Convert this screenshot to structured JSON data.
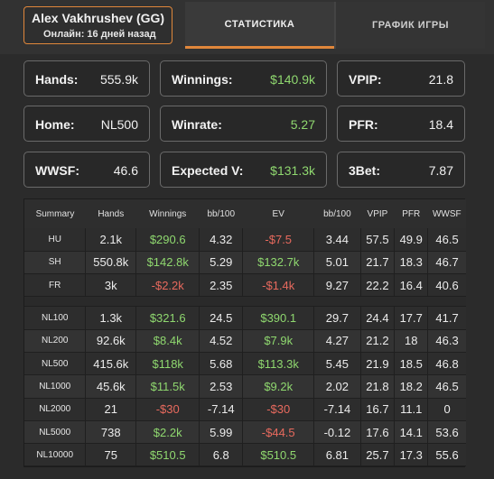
{
  "player": {
    "name": "Alex Vakhrushev (GG)",
    "status": "Онлайн: 16 дней назад"
  },
  "tabs": [
    {
      "label": "СТАТИСТИКА",
      "active": true
    },
    {
      "label": "ГРАФИК ИГРЫ",
      "active": false
    }
  ],
  "stats": {
    "hands": {
      "label": "Hands:",
      "value": "555.9k"
    },
    "winnings": {
      "label": "Winnings:",
      "value": "$140.9k"
    },
    "vpip": {
      "label": "VPIP:",
      "value": "21.8"
    },
    "home": {
      "label": "Home:",
      "value": "NL500"
    },
    "winrate": {
      "label": "Winrate:",
      "value": "5.27"
    },
    "pfr": {
      "label": "PFR:",
      "value": "18.4"
    },
    "wwsf": {
      "label": "WWSF:",
      "value": "46.6"
    },
    "expected": {
      "label": "Expected V:",
      "value": "$131.3k"
    },
    "threebet": {
      "label": "3Bet:",
      "value": "7.87"
    }
  },
  "colors": {
    "accent": "#e0873b",
    "positive": "#8fd86f",
    "negative": "#e86a5e"
  },
  "table": {
    "headers": [
      "Summary",
      "Hands",
      "Winnings",
      "bb/100",
      "EV",
      "bb/100",
      "VPIP",
      "PFR",
      "WWSF"
    ],
    "group1": [
      [
        "HU",
        "2.1k",
        "$290.6",
        "4.32",
        "-$7.5",
        "3.44",
        "57.5",
        "49.9",
        "46.5"
      ],
      [
        "SH",
        "550.8k",
        "$142.8k",
        "5.29",
        "$132.7k",
        "5.01",
        "21.7",
        "18.3",
        "46.7"
      ],
      [
        "FR",
        "3k",
        "-$2.2k",
        "2.35",
        "-$1.4k",
        "9.27",
        "22.2",
        "16.4",
        "40.6"
      ]
    ],
    "group2": [
      [
        "NL100",
        "1.3k",
        "$321.6",
        "24.5",
        "$390.1",
        "29.7",
        "24.4",
        "17.7",
        "41.7"
      ],
      [
        "NL200",
        "92.6k",
        "$8.4k",
        "4.52",
        "$7.9k",
        "4.27",
        "21.2",
        "18",
        "46.3"
      ],
      [
        "NL500",
        "415.6k",
        "$118k",
        "5.68",
        "$113.3k",
        "5.45",
        "21.9",
        "18.5",
        "46.8"
      ],
      [
        "NL1000",
        "45.6k",
        "$11.5k",
        "2.53",
        "$9.2k",
        "2.02",
        "21.8",
        "18.2",
        "46.5"
      ],
      [
        "NL2000",
        "21",
        "-$30",
        "-7.14",
        "-$30",
        "-7.14",
        "16.7",
        "11.1",
        "0"
      ],
      [
        "NL5000",
        "738",
        "$2.2k",
        "5.99",
        "-$44.5",
        "-0.12",
        "17.6",
        "14.1",
        "53.6"
      ],
      [
        "NL10000",
        "75",
        "$510.5",
        "6.8",
        "$510.5",
        "6.81",
        "25.7",
        "17.3",
        "55.6"
      ]
    ]
  }
}
